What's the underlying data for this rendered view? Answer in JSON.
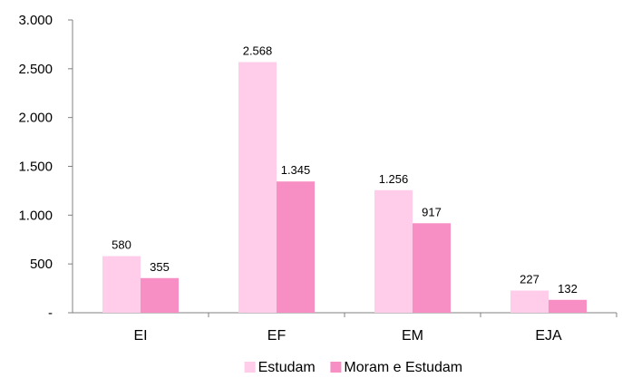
{
  "chart_data": {
    "type": "bar",
    "categories": [
      "EI",
      "EF",
      "EM",
      "EJA"
    ],
    "series": [
      {
        "name": "Estudam",
        "values": [
          580,
          2568,
          1256,
          227
        ],
        "labels": [
          "580",
          "2.568",
          "1.256",
          "227"
        ],
        "color": "#ffccea"
      },
      {
        "name": "Moram e Estudam",
        "values": [
          355,
          1345,
          917,
          132
        ],
        "labels": [
          "355",
          "1.345",
          "917",
          "132"
        ],
        "color": "#f78fc4"
      }
    ],
    "ylim": [
      0,
      3000
    ],
    "yticks": [
      0,
      500,
      1000,
      1500,
      2000,
      2500,
      3000
    ],
    "ytick_labels": [
      "-",
      "500",
      "1.000",
      "1.500",
      "2.000",
      "2.500",
      "3.000"
    ],
    "grid": false,
    "legend_position": "bottom",
    "axis_color": "#808080"
  }
}
